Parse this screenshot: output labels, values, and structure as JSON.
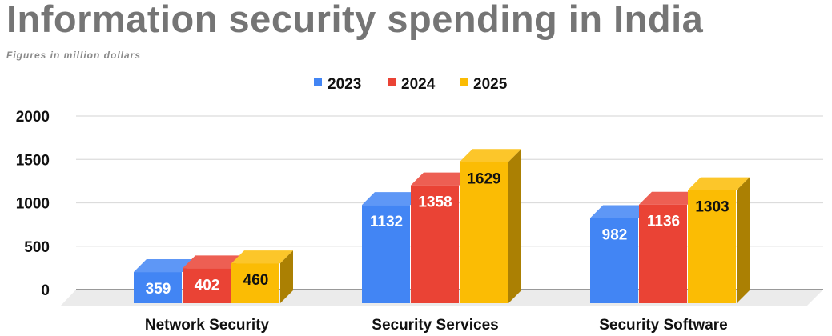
{
  "chart_data": {
    "type": "bar",
    "title": "Information security spending in India",
    "subtitle": "Figures in million dollars",
    "categories": [
      "Network Security",
      "Security Services",
      "Security Software"
    ],
    "series": [
      {
        "name": "2023",
        "color": "#4285f4",
        "values": [
          359,
          1132,
          982
        ]
      },
      {
        "name": "2024",
        "color": "#ea4335",
        "values": [
          402,
          1358,
          1136
        ]
      },
      {
        "name": "2025",
        "color": "#fbbc04",
        "values": [
          460,
          1629,
          1303
        ]
      }
    ],
    "yticks": [
      "0",
      "500",
      "1000",
      "1500",
      "2000"
    ],
    "ylim": [
      0,
      2000
    ],
    "grid": true,
    "legend": "top-center",
    "style": "3d"
  }
}
